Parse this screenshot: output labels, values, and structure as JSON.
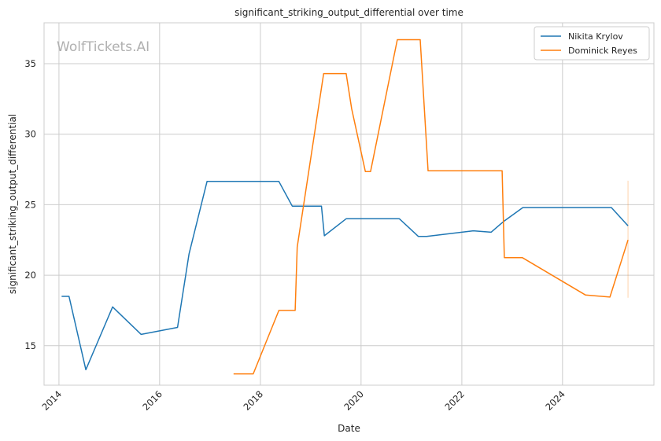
{
  "chart_data": {
    "type": "line",
    "title": "significant_striking_output_differential over time",
    "xlabel": "Date",
    "ylabel": "significant_striking_output_differential",
    "watermark": "WolfTickets.AI",
    "x_ticks": [
      "2014",
      "2016",
      "2018",
      "2020",
      "2022",
      "2024"
    ],
    "y_ticks": [
      15,
      20,
      25,
      30,
      35
    ],
    "xlim": [
      "2013-09-15",
      "2025-10-25"
    ],
    "ylim": [
      12.2,
      37.9
    ],
    "grid": true,
    "legend_position": "top-right",
    "colors": {
      "nikita": "#1f77b4",
      "dominick": "#ff7f0e",
      "grid": "#cccccc",
      "spine": "#cccccc"
    },
    "series": [
      {
        "name": "Nikita Krylov",
        "color": "#1f77b4",
        "points": [
          [
            "2014-01-20",
            18.5
          ],
          [
            "2014-03-15",
            18.5
          ],
          [
            "2014-07-15",
            13.3
          ],
          [
            "2015-01-25",
            17.75
          ],
          [
            "2015-08-20",
            15.8
          ],
          [
            "2016-05-10",
            16.3
          ],
          [
            "2016-08-01",
            21.5
          ],
          [
            "2016-12-10",
            26.65
          ],
          [
            "2018-05-15",
            26.65
          ],
          [
            "2018-08-20",
            24.9
          ],
          [
            "2019-03-20",
            24.9
          ],
          [
            "2019-04-10",
            22.8
          ],
          [
            "2019-09-15",
            24.0
          ],
          [
            "2020-10-05",
            24.0
          ],
          [
            "2021-02-20",
            22.75
          ],
          [
            "2021-04-20",
            22.75
          ],
          [
            "2022-03-25",
            23.15
          ],
          [
            "2022-08-01",
            23.05
          ],
          [
            "2022-10-30",
            23.8
          ],
          [
            "2023-03-20",
            24.8
          ],
          [
            "2024-12-20",
            24.8
          ],
          [
            "2025-04-20",
            23.5
          ]
        ]
      },
      {
        "name": "Dominick Reyes",
        "color": "#ff7f0e",
        "points": [
          [
            "2017-06-20",
            13.0
          ],
          [
            "2017-11-10",
            13.0
          ],
          [
            "2018-05-15",
            17.5
          ],
          [
            "2018-09-10",
            17.5
          ],
          [
            "2018-09-25",
            22.0
          ],
          [
            "2019-04-05",
            34.3
          ],
          [
            "2019-09-15",
            34.3
          ],
          [
            "2019-10-25",
            31.8
          ],
          [
            "2020-02-01",
            27.35
          ],
          [
            "2020-03-10",
            27.35
          ],
          [
            "2020-09-20",
            36.7
          ],
          [
            "2021-03-05",
            36.7
          ],
          [
            "2021-05-01",
            27.4
          ],
          [
            "2022-10-20",
            27.4
          ],
          [
            "2022-11-05",
            21.25
          ],
          [
            "2023-03-15",
            21.25
          ],
          [
            "2024-06-15",
            18.6
          ],
          [
            "2024-12-10",
            18.45
          ],
          [
            "2025-04-20",
            22.5
          ]
        ]
      }
    ],
    "error_band": {
      "x": "2025-04-20",
      "low": 18.4,
      "high": 26.7,
      "color": "#ff7f0e"
    }
  }
}
